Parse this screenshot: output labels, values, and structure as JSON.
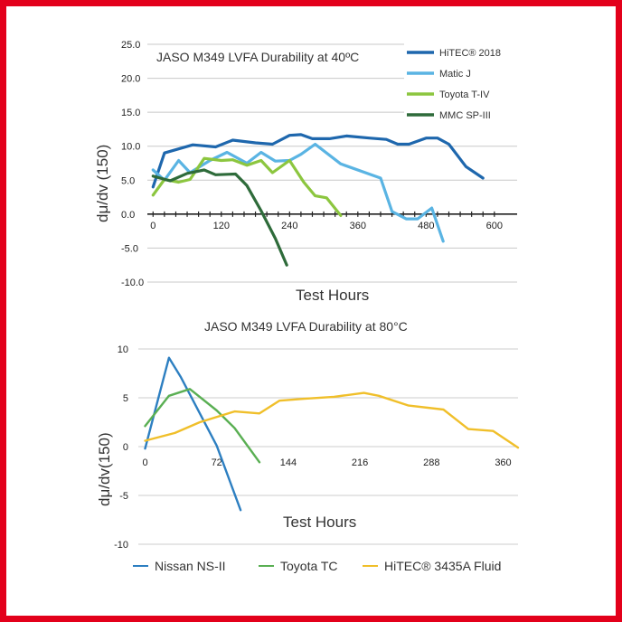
{
  "chart_data": [
    {
      "type": "line",
      "title": "JASO M349  LVFA Durability at 40ºC",
      "xlabel": "Test Hours",
      "ylabel": "dμ/dv (150)",
      "xlim": [
        -10,
        640
      ],
      "ylim": [
        -10,
        25
      ],
      "x_ticks": [
        0,
        120,
        240,
        360,
        480,
        600
      ],
      "y_ticks": [
        "25.0",
        "20.0",
        "15.0",
        "10.0",
        "5.0",
        "0.0",
        "-5.0",
        "-10.0"
      ],
      "grid": true,
      "legend_position": "top-right",
      "series": [
        {
          "name": "HiTEC® 2018",
          "color": "#1e67ad",
          "x": [
            0,
            20,
            70,
            110,
            140,
            180,
            210,
            240,
            260,
            280,
            310,
            340,
            380,
            410,
            430,
            450,
            480,
            500,
            520,
            550,
            580
          ],
          "y": [
            4,
            9,
            10.2,
            9.9,
            10.9,
            10.5,
            10.3,
            11.6,
            11.7,
            11.1,
            11.1,
            11.5,
            11.2,
            11,
            10.3,
            10.3,
            11.2,
            11.2,
            10.3,
            7,
            5.3
          ]
        },
        {
          "name": "Matic J",
          "color": "#5ab4e3",
          "x": [
            0,
            20,
            45,
            65,
            100,
            130,
            165,
            190,
            215,
            240,
            260,
            285,
            330,
            400,
            420,
            445,
            465,
            490,
            510
          ],
          "y": [
            6.5,
            5,
            7.9,
            6.1,
            7.9,
            9.1,
            7.5,
            9.1,
            7.8,
            7.9,
            8.8,
            10.3,
            7.4,
            5.3,
            0.4,
            -0.7,
            -0.7,
            0.9,
            -4
          ]
        },
        {
          "name": "Toyota T-IV",
          "color": "#8cc63f",
          "x": [
            0,
            20,
            45,
            65,
            90,
            120,
            140,
            165,
            190,
            210,
            240,
            265,
            285,
            305,
            330
          ],
          "y": [
            2.8,
            5.1,
            4.7,
            5.1,
            8.2,
            7.9,
            8,
            7.2,
            7.9,
            6.1,
            7.9,
            4.7,
            2.7,
            2.4,
            -0.2
          ]
        },
        {
          "name": "MMC SP-III",
          "color": "#2e6b3a",
          "x": [
            0,
            30,
            60,
            90,
            110,
            145,
            165,
            190,
            215,
            235
          ],
          "y": [
            5.6,
            4.9,
            6,
            6.5,
            5.8,
            5.9,
            4.2,
            0.5,
            -3.6,
            -7.5
          ]
        }
      ]
    },
    {
      "type": "line",
      "title": "JASO M349 LVFA Durability at 80°C",
      "xlabel": "Test Hours",
      "ylabel": "dμ/dv(150)",
      "xlim": [
        -5,
        375
      ],
      "ylim": [
        -10,
        10
      ],
      "x_ticks": [
        0,
        72,
        144,
        216,
        288,
        360
      ],
      "y_ticks": [
        "10",
        "5",
        "0",
        "-5",
        "-10"
      ],
      "grid": true,
      "legend_position": "bottom",
      "series": [
        {
          "name": "Nissan NS-II",
          "color": "#2d7fc1",
          "x": [
            0,
            24,
            36,
            72,
            96
          ],
          "y": [
            -0.2,
            9.1,
            7.1,
            0.1,
            -6.5
          ]
        },
        {
          "name": "Toyota TC",
          "color": "#5aaf53",
          "x": [
            0,
            24,
            45,
            72,
            90,
            115
          ],
          "y": [
            2.1,
            5.2,
            5.9,
            3.7,
            1.9,
            -1.6
          ]
        },
        {
          "name": "HiTEC® 3435A Fluid",
          "color": "#f0bf2a",
          "x": [
            0,
            30,
            55,
            90,
            115,
            135,
            160,
            190,
            220,
            235,
            265,
            300,
            325,
            350,
            375
          ],
          "y": [
            0.6,
            1.4,
            2.5,
            3.6,
            3.4,
            4.7,
            4.9,
            5.1,
            5.5,
            5.2,
            4.2,
            3.8,
            1.8,
            1.6,
            -0.1
          ]
        }
      ]
    }
  ]
}
